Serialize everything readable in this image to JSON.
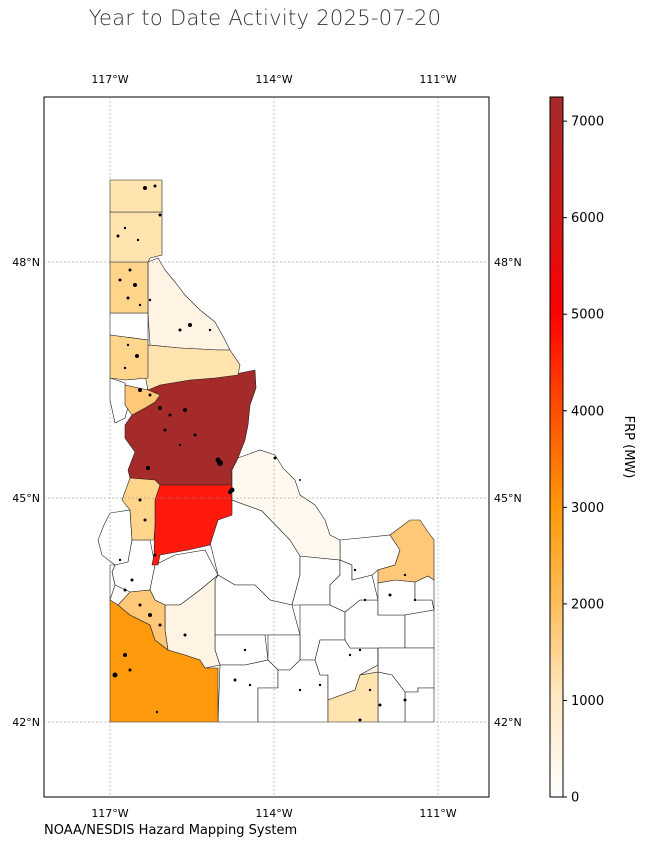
{
  "title": "Year to Date Activity 2025-07-20",
  "credit": "NOAA/NESDIS Hazard Mapping System",
  "colorbar": {
    "label": "FRP (MW)",
    "min": 0,
    "max": 7250,
    "ticks": [
      "0",
      "1000",
      "2000",
      "3000",
      "4000",
      "5000",
      "6000",
      "7000"
    ],
    "colors": [
      "#ffffff",
      "#ffe4b0",
      "#ffb347",
      "#ff9500",
      "#ff5a00",
      "#ff0000",
      "#dd1515",
      "#a52a2a"
    ]
  },
  "axes": {
    "lon_ticks": [
      "117°W",
      "114°W",
      "111°W"
    ],
    "lat_ticks": [
      "48°N",
      "45°N",
      "42°N"
    ]
  },
  "chart_data": {
    "type": "heatmap",
    "title": "Year to Date Activity 2025-07-20",
    "colorbar_label": "FRP (MW)",
    "colorbar_range": [
      0,
      7250
    ],
    "lon_range": [
      -118.2,
      -110.3
    ],
    "lat_range": [
      41.1,
      49.6
    ],
    "regions": [
      {
        "frp": 7200,
        "color": "#a52a2a"
      },
      {
        "frp": 5500,
        "color": "#ff1a0d"
      },
      {
        "frp": 3000,
        "color": "#ff9a0d"
      },
      {
        "frp": 1500,
        "color": "#ffc878"
      },
      {
        "frp": 1200,
        "color": "#ffd58c"
      },
      {
        "frp": 800,
        "color": "#ffe4b0"
      },
      {
        "frp": 200,
        "color": "#fff3e3"
      }
    ]
  }
}
